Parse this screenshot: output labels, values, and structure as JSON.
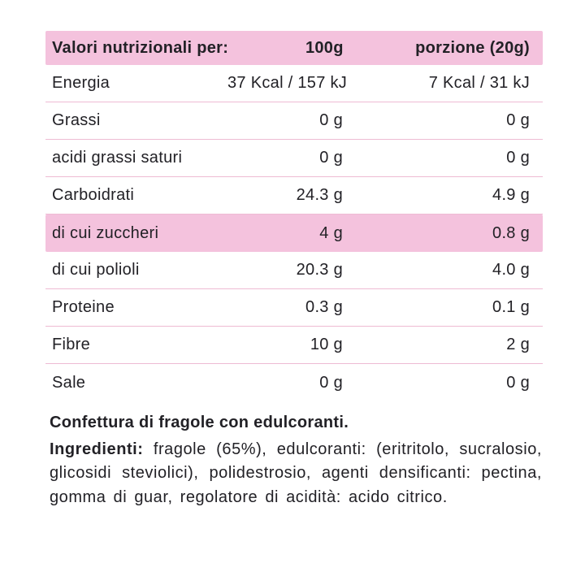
{
  "table": {
    "header": {
      "label": "Valori nutrizionali per:",
      "per_100g": "100g",
      "per_portion": "porzione (20g)"
    },
    "rows": [
      {
        "label": "Energia",
        "per_100g": "37 Kcal / 157 kJ",
        "per_portion": "7 Kcal / 31 kJ",
        "highlight": false
      },
      {
        "label": "Grassi",
        "per_100g": "0 g",
        "per_portion": "0 g",
        "highlight": false
      },
      {
        "label": "acidi grassi saturi",
        "per_100g": "0 g",
        "per_portion": "0 g",
        "highlight": false
      },
      {
        "label": "Carboidrati",
        "per_100g": "24.3 g",
        "per_portion": "4.9 g",
        "highlight": false
      },
      {
        "label": "di cui zuccheri",
        "per_100g": "4 g",
        "per_portion": "0.8 g",
        "highlight": true
      },
      {
        "label": "di cui polioli",
        "per_100g": "20.3 g",
        "per_portion": "4.0 g",
        "highlight": false
      },
      {
        "label": "Proteine",
        "per_100g": "0.3 g",
        "per_portion": "0.1 g",
        "highlight": false
      },
      {
        "label": "Fibre",
        "per_100g": "10 g",
        "per_portion": "2 g",
        "highlight": false
      },
      {
        "label": "Sale",
        "per_100g": "0 g",
        "per_portion": "0 g",
        "highlight": false
      }
    ]
  },
  "description": {
    "title": "Confettura di fragole con edulcoranti.",
    "ingredients_label": "Ingredienti:",
    "ingredients_text": "fragole (65%), edulcoranti: (eritritolo, sucralosio, glicosidi steviolici), polidestrosio, agenti densificanti: pectina, gomma di guar, regolatore di acidità: acido citrico."
  },
  "colors": {
    "highlight_pink": "#f4c2dd",
    "divider_pink": "#eebbd3",
    "text": "#222126",
    "background": "#ffffff"
  }
}
